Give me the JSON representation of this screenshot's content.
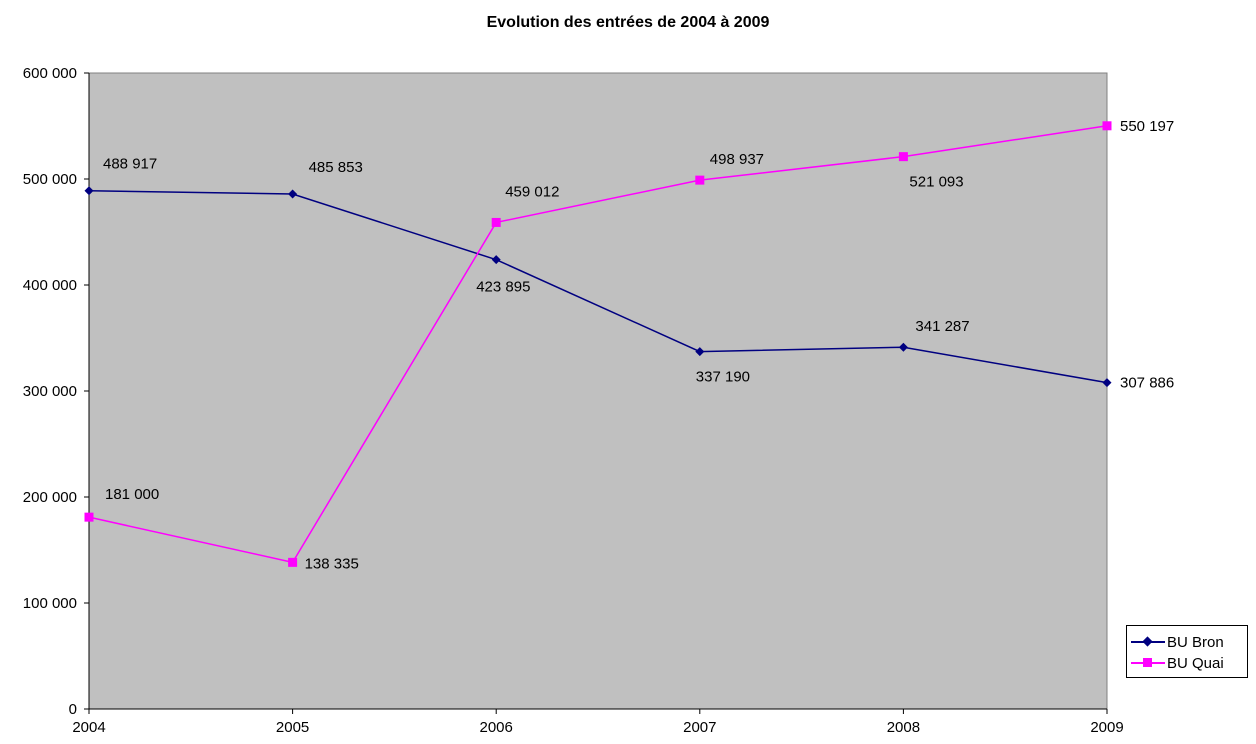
{
  "chart_data": {
    "type": "line",
    "title": "Evolution des entrées de 2004 à 2009",
    "xlabel": "",
    "ylabel": "",
    "categories": [
      "2004",
      "2005",
      "2006",
      "2007",
      "2008",
      "2009"
    ],
    "ylim": [
      0,
      600000
    ],
    "yticks": [
      0,
      100000,
      200000,
      300000,
      400000,
      500000,
      600000
    ],
    "ytick_labels": [
      "0",
      "100 000",
      "200 000",
      "300 000",
      "400 000",
      "500 000",
      "600 000"
    ],
    "grid": false,
    "plot_background": "#c0c0c0",
    "legend_position": "right",
    "series": [
      {
        "name": "BU Bron",
        "color": "#000080",
        "marker": "diamond",
        "values": [
          488917,
          485853,
          423895,
          337190,
          341287,
          307886
        ],
        "labels": [
          "488 917",
          "485 853",
          "423 895",
          "337 190",
          "341 287",
          "307 886"
        ]
      },
      {
        "name": "BU Quai",
        "color": "#ff00ff",
        "marker": "square",
        "values": [
          181000,
          138335,
          459012,
          498937,
          521093,
          550197
        ],
        "labels": [
          "181 000",
          "138 335",
          "459 012",
          "498 937",
          "521 093",
          "550 197"
        ]
      }
    ]
  }
}
